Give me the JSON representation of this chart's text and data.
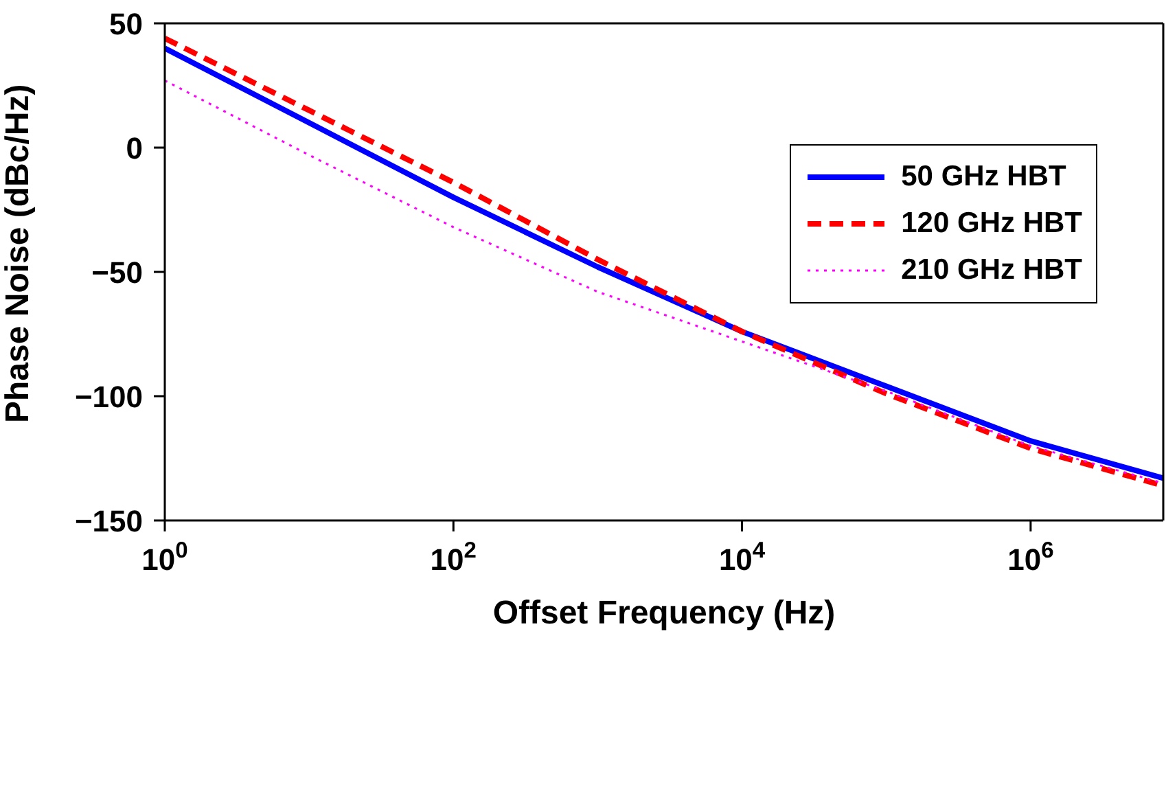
{
  "chart_data": {
    "type": "line",
    "xlabel": "Offset Frequency (Hz)",
    "ylabel": "Phase Noise (dBc/Hz)",
    "x": [
      1,
      10,
      100,
      1000,
      10000,
      100000,
      1000000,
      8300000
    ],
    "series": [
      {
        "name": "50 GHz HBT",
        "color": "#0000ff",
        "line_style": "solid",
        "values": [
          40,
          10,
          -20,
          -48,
          -74,
          -96,
          -118,
          -133
        ]
      },
      {
        "name": "120 GHz HBT",
        "color": "#ff0000",
        "line_style": "dashed",
        "values": [
          44,
          15,
          -14,
          -45,
          -74,
          -99,
          -121,
          -136
        ]
      },
      {
        "name": "210 GHz HBT",
        "color": "#ff00ff",
        "line_style": "dotted",
        "values": [
          27,
          -3,
          -32,
          -58,
          -78,
          -98,
          -120,
          -135
        ]
      }
    ],
    "log": "x",
    "xlim": [
      1,
      8300000
    ],
    "xticks": [
      {
        "value": 1,
        "label": "10$^{0}$"
      },
      {
        "value": 100,
        "label": "10$^{2}$"
      },
      {
        "value": 10000,
        "label": "10$^{4}$"
      },
      {
        "value": 1000000,
        "label": "10$^{6}$"
      }
    ],
    "ylim": [
      -150,
      50
    ],
    "yticks": [
      -150,
      -100,
      -50,
      0,
      50
    ],
    "grid": false,
    "legend": "top right",
    "marker": "none"
  }
}
